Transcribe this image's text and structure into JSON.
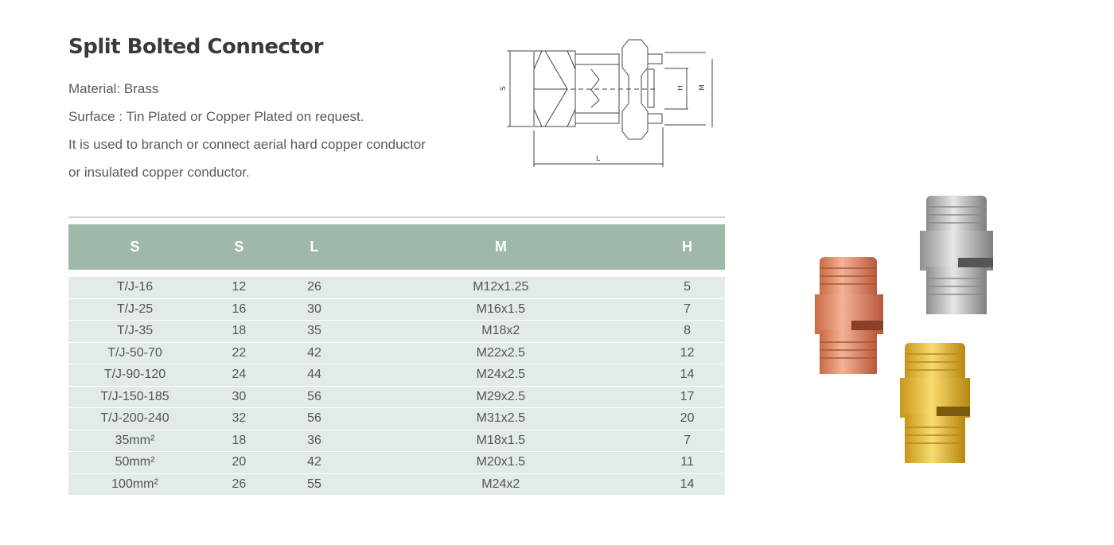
{
  "title": "Split Bolted Connector",
  "description": [
    "Material: Brass",
    "Surface : Tin Plated or Copper Plated on request.",
    "It is used to branch or connect aerial hard copper conductor",
    "or insulated copper conductor."
  ],
  "drawing": {
    "labels": {
      "s": "S",
      "l": "L",
      "h": "H",
      "m": "M"
    }
  },
  "table": {
    "headers": [
      "S",
      "S",
      "L",
      "M",
      "H"
    ],
    "rows": [
      [
        "T/J-16",
        "12",
        "26",
        "M12x1.25",
        "5"
      ],
      [
        "T/J-25",
        "16",
        "30",
        "M16x1.5",
        "7"
      ],
      [
        "T/J-35",
        "18",
        "35",
        "M18x2",
        "8"
      ],
      [
        "T/J-50-70",
        "22",
        "42",
        "M22x2.5",
        "12"
      ],
      [
        "T/J-90-120",
        "24",
        "44",
        "M24x2.5",
        "14"
      ],
      [
        "T/J-150-185",
        "30",
        "56",
        "M29x2.5",
        "17"
      ],
      [
        "T/J-200-240",
        "32",
        "56",
        "M31x2.5",
        "20"
      ],
      [
        "35mm²",
        "18",
        "36",
        "M18x1.5",
        "7"
      ],
      [
        "50mm²",
        "20",
        "42",
        "M20x1.5",
        "11"
      ],
      [
        "100mm²",
        "26",
        "55",
        "M24x2",
        "14"
      ]
    ]
  },
  "products": [
    {
      "finish": "copper",
      "color": "#e08a62"
    },
    {
      "finish": "tin",
      "color": "#b8b8b8"
    },
    {
      "finish": "brass",
      "color": "#e2b83a"
    }
  ]
}
